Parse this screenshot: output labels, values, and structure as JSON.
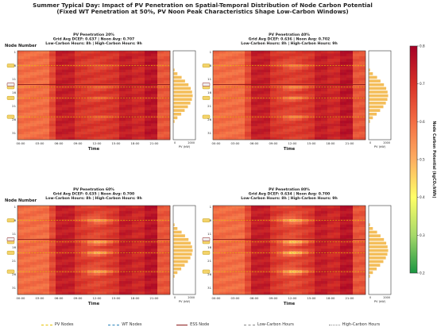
{
  "title": "Summer Typical Day: Impact of PV Penetration on Spatial-Temporal Distribution of Node Carbon Potential",
  "subtitle": "(Fixed WT Penetration at 50%, PV Noon Peak Characteristics Shape Low-Carbon Windows)",
  "colorbar": {
    "label": "Node Carbon Potential (kgCO₂/kWh)",
    "min": 0.2,
    "max": 0.8,
    "ticks": [
      "0.2",
      "0.3",
      "0.4",
      "0.5",
      "0.6",
      "0.7",
      "0.8"
    ],
    "colors": [
      "#1a9641",
      "#a6d96a",
      "#ffff66",
      "#fdae61",
      "#f46d43",
      "#d73027",
      "#a50026"
    ]
  },
  "legend": [
    {
      "label": "PV Nodes",
      "color": "#e6c200"
    },
    {
      "label": "WT Nodes",
      "color": "#2b83ba"
    },
    {
      "label": "ESS Node",
      "color": "#8b1a1a"
    },
    {
      "label": "Low-Carbon Hours",
      "color": "#888888"
    },
    {
      "label": "High-Carbon Hours",
      "color": "#888888"
    }
  ],
  "chart_data": [
    {
      "type": "heatmap",
      "title": "PV Penetration 20%",
      "stats": "Grid Avg DCEF: 0.637 | Noon Avg: 0.707",
      "hours": "Low-Carbon Hours: 8h | High-Carbon Hours: 9h",
      "ylabel": "Node Number",
      "xlabel": "Time",
      "x_ticks": [
        "00:00",
        "03:00",
        "06:00",
        "09:00",
        "12:00",
        "15:00",
        "18:00",
        "21:00"
      ],
      "y_ticks": [
        "1",
        "6",
        "11",
        "16",
        "21",
        "26",
        "31"
      ],
      "side_label": "PV (kW)",
      "side_ticks": [
        "0",
        "2000"
      ],
      "side_profile": [
        0.05,
        0.2,
        0.42,
        0.6,
        0.78,
        0.9,
        0.97,
        1.0,
        0.96,
        0.88,
        0.75,
        0.58,
        0.4,
        0.2,
        0.05
      ],
      "pv_nodes": [
        6,
        14,
        18,
        25
      ],
      "ess_node": 13,
      "noon_low_carbon_strength": 0.25
    },
    {
      "type": "heatmap",
      "title": "PV Penetration 40%",
      "stats": "Grid Avg DCEF: 0.636 | Noon Avg: 0.702",
      "hours": "Low-Carbon Hours: 8h | High-Carbon Hours: 9h",
      "ylabel": "",
      "xlabel": "Time",
      "x_ticks": [
        "00:00",
        "03:00",
        "06:00",
        "09:00",
        "12:00",
        "15:00",
        "18:00",
        "21:00"
      ],
      "y_ticks": [
        "1",
        "6",
        "11",
        "16",
        "21",
        "26",
        "31"
      ],
      "side_label": "PV (kW)",
      "side_ticks": [
        "0",
        "2000"
      ],
      "side_profile": [
        0.05,
        0.2,
        0.42,
        0.6,
        0.78,
        0.9,
        0.97,
        1.0,
        0.96,
        0.88,
        0.75,
        0.58,
        0.4,
        0.2,
        0.05
      ],
      "pv_nodes": [
        6,
        14,
        18,
        25
      ],
      "ess_node": 13,
      "noon_low_carbon_strength": 0.5
    },
    {
      "type": "heatmap",
      "title": "PV Penetration 60%",
      "stats": "Grid Avg DCEF: 0.635 | Noon Avg: 0.700",
      "hours": "Low-Carbon Hours: 8h | High-Carbon Hours: 9h",
      "ylabel": "Node Number",
      "xlabel": "Time",
      "x_ticks": [
        "00:00",
        "03:00",
        "06:00",
        "09:00",
        "12:00",
        "15:00",
        "18:00",
        "21:00"
      ],
      "y_ticks": [
        "1",
        "6",
        "11",
        "16",
        "21",
        "26",
        "31"
      ],
      "side_label": "PV (kW)",
      "side_ticks": [
        "0",
        "2000"
      ],
      "side_profile": [
        0.05,
        0.2,
        0.42,
        0.6,
        0.78,
        0.9,
        0.97,
        1.0,
        0.96,
        0.88,
        0.75,
        0.58,
        0.4,
        0.2,
        0.05
      ],
      "pv_nodes": [
        6,
        14,
        18,
        25
      ],
      "ess_node": 13,
      "noon_low_carbon_strength": 0.7
    },
    {
      "type": "heatmap",
      "title": "PV Penetration 80%",
      "stats": "Grid Avg DCEF: 0.634 | Noon Avg: 0.700",
      "hours": "Low-Carbon Hours: 8h | High-Carbon Hours: 9h",
      "ylabel": "",
      "xlabel": "Time",
      "x_ticks": [
        "00:00",
        "03:00",
        "06:00",
        "09:00",
        "12:00",
        "15:00",
        "18:00",
        "21:00"
      ],
      "y_ticks": [
        "1",
        "6",
        "11",
        "16",
        "21",
        "26",
        "31"
      ],
      "side_label": "PV (kW)",
      "side_ticks": [
        "0",
        "2000"
      ],
      "side_profile": [
        0.05,
        0.2,
        0.42,
        0.6,
        0.78,
        0.9,
        0.97,
        1.0,
        0.96,
        0.88,
        0.75,
        0.58,
        0.4,
        0.2,
        0.05
      ],
      "pv_nodes": [
        6,
        14,
        18,
        25
      ],
      "ess_node": 13,
      "noon_low_carbon_strength": 0.85
    }
  ]
}
